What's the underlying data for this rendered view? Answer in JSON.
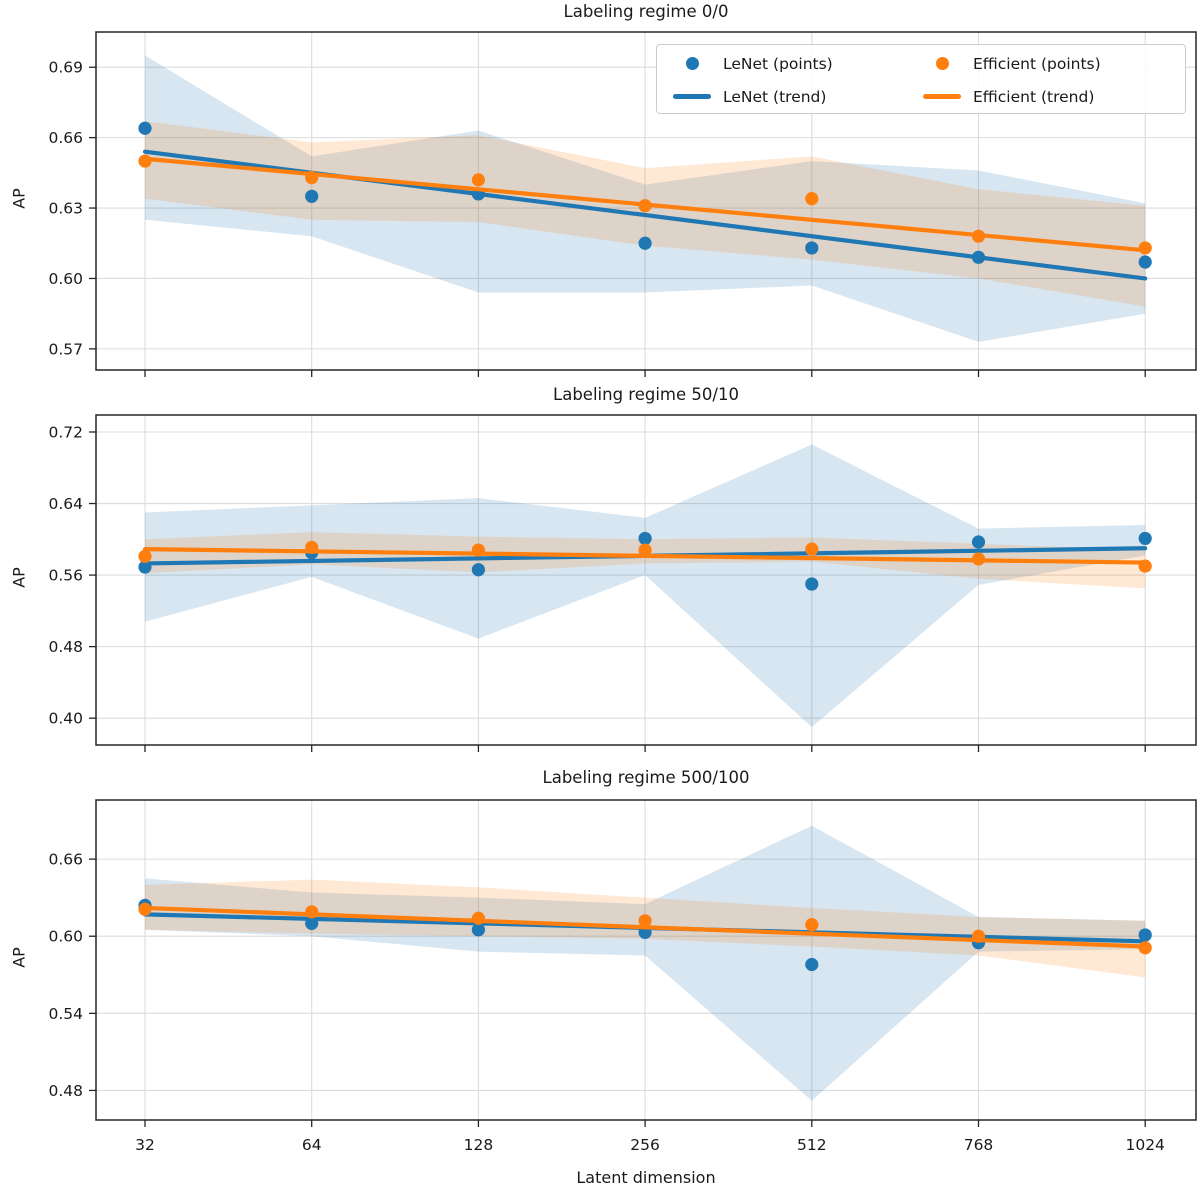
{
  "figure": {
    "xlabel": "Latent dimension",
    "ylabel": "AP",
    "background": "#ffffff",
    "accent_blue": "#1f77b4",
    "accent_orange": "#ff7f0e"
  },
  "legend": {
    "items": [
      {
        "label": "LeNet (points)",
        "type": "dot",
        "color": "#1f77b4"
      },
      {
        "label": "Efficient (points)",
        "type": "dot",
        "color": "#ff7f0e"
      },
      {
        "label": "LeNet (trend)",
        "type": "line",
        "color": "#1f77b4"
      },
      {
        "label": "Efficient (trend)",
        "type": "line",
        "color": "#ff7f0e"
      }
    ]
  },
  "chart_data": [
    {
      "type": "line",
      "title": "Labeling regime 0/0",
      "xlabel": "Latent dimension",
      "ylabel": "AP",
      "categories": [
        32,
        64,
        128,
        256,
        512,
        768,
        1024
      ],
      "ylim": [
        0.561,
        0.705
      ],
      "yticks": [
        0.57,
        0.6,
        0.63,
        0.66,
        0.69
      ],
      "grid": true,
      "legend": true,
      "series": [
        {
          "name": "LeNet (band)",
          "style": "band",
          "color": "#1f77b4",
          "lo": [
            0.625,
            0.618,
            0.594,
            0.594,
            0.597,
            0.573,
            0.585
          ],
          "hi": [
            0.695,
            0.652,
            0.663,
            0.64,
            0.65,
            0.646,
            0.632
          ]
        },
        {
          "name": "Efficient (band)",
          "style": "band",
          "color": "#ff7f0e",
          "lo": [
            0.634,
            0.625,
            0.624,
            0.614,
            0.608,
            0.6,
            0.588
          ],
          "hi": [
            0.667,
            0.658,
            0.661,
            0.647,
            0.652,
            0.638,
            0.631
          ]
        },
        {
          "name": "LeNet (trend)",
          "style": "trend",
          "color": "#1f77b4",
          "endpoints": [
            0.654,
            0.6
          ]
        },
        {
          "name": "LeNet (points)",
          "style": "points",
          "color": "#1f77b4",
          "values": [
            0.664,
            0.635,
            0.636,
            0.615,
            0.613,
            0.609,
            0.607
          ]
        },
        {
          "name": "Efficient (trend)",
          "style": "trend",
          "color": "#ff7f0e",
          "endpoints": [
            0.651,
            0.612
          ]
        },
        {
          "name": "Efficient (points)",
          "style": "points",
          "color": "#ff7f0e",
          "values": [
            0.65,
            0.643,
            0.642,
            0.631,
            0.634,
            0.618,
            0.613
          ]
        }
      ]
    },
    {
      "type": "line",
      "title": "Labeling regime 50/10",
      "xlabel": "Latent dimension",
      "ylabel": "AP",
      "categories": [
        32,
        64,
        128,
        256,
        512,
        768,
        1024
      ],
      "ylim": [
        0.37,
        0.739
      ],
      "yticks": [
        0.4,
        0.48,
        0.56,
        0.64,
        0.72
      ],
      "grid": true,
      "legend": false,
      "series": [
        {
          "name": "LeNet (band)",
          "style": "band",
          "color": "#1f77b4",
          "lo": [
            0.508,
            0.558,
            0.489,
            0.56,
            0.39,
            0.549,
            0.582
          ],
          "hi": [
            0.63,
            0.638,
            0.646,
            0.624,
            0.706,
            0.612,
            0.616
          ]
        },
        {
          "name": "Efficient (band)",
          "style": "band",
          "color": "#ff7f0e",
          "lo": [
            0.562,
            0.572,
            0.563,
            0.573,
            0.575,
            0.556,
            0.545
          ],
          "hi": [
            0.6,
            0.608,
            0.603,
            0.6,
            0.602,
            0.595,
            0.588
          ]
        },
        {
          "name": "LeNet (trend)",
          "style": "trend",
          "color": "#1f77b4",
          "endpoints": [
            0.573,
            0.59
          ]
        },
        {
          "name": "LeNet (points)",
          "style": "points",
          "color": "#1f77b4",
          "values": [
            0.569,
            0.585,
            0.566,
            0.601,
            0.55,
            0.597,
            0.601
          ]
        },
        {
          "name": "Efficient (trend)",
          "style": "trend",
          "color": "#ff7f0e",
          "endpoints": [
            0.589,
            0.574
          ]
        },
        {
          "name": "Efficient (points)",
          "style": "points",
          "color": "#ff7f0e",
          "values": [
            0.581,
            0.591,
            0.588,
            0.588,
            0.589,
            0.578,
            0.57
          ]
        }
      ]
    },
    {
      "type": "line",
      "title": "Labeling regime 500/100",
      "xlabel": "Latent dimension",
      "ylabel": "AP",
      "categories": [
        32,
        64,
        128,
        256,
        512,
        768,
        1024
      ],
      "ylim": [
        0.457,
        0.706
      ],
      "yticks": [
        0.48,
        0.54,
        0.6,
        0.66
      ],
      "grid": true,
      "legend": false,
      "series": [
        {
          "name": "LeNet (band)",
          "style": "band",
          "color": "#1f77b4",
          "lo": [
            0.605,
            0.6,
            0.588,
            0.585,
            0.472,
            0.588,
            0.59
          ],
          "hi": [
            0.645,
            0.634,
            0.63,
            0.625,
            0.686,
            0.615,
            0.612
          ]
        },
        {
          "name": "Efficient (band)",
          "style": "band",
          "color": "#ff7f0e",
          "lo": [
            0.605,
            0.602,
            0.6,
            0.598,
            0.592,
            0.585,
            0.568
          ],
          "hi": [
            0.64,
            0.644,
            0.638,
            0.63,
            0.622,
            0.615,
            0.612
          ]
        },
        {
          "name": "LeNet (trend)",
          "style": "trend",
          "color": "#1f77b4",
          "endpoints": [
            0.617,
            0.596
          ]
        },
        {
          "name": "LeNet (points)",
          "style": "points",
          "color": "#1f77b4",
          "values": [
            0.624,
            0.61,
            0.605,
            0.603,
            0.578,
            0.595,
            0.601
          ]
        },
        {
          "name": "Efficient (trend)",
          "style": "trend",
          "color": "#ff7f0e",
          "endpoints": [
            0.622,
            0.592
          ]
        },
        {
          "name": "Efficient (points)",
          "style": "points",
          "color": "#ff7f0e",
          "values": [
            0.621,
            0.619,
            0.614,
            0.612,
            0.609,
            0.6,
            0.591
          ]
        }
      ]
    }
  ]
}
